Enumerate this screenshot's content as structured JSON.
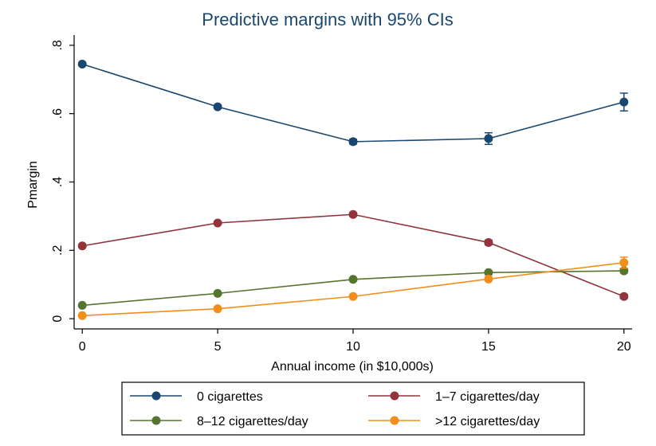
{
  "chart_data": {
    "type": "line",
    "title": "Predictive margins with 95% CIs",
    "xlabel": "Annual income (in $10,000s)",
    "ylabel": "Pmargin",
    "x": [
      0,
      5,
      10,
      15,
      20
    ],
    "x_tick_labels": [
      "0",
      "5",
      "10",
      "15",
      "20"
    ],
    "y_ticks": [
      0,
      0.2,
      0.4,
      0.6,
      0.8
    ],
    "y_tick_labels": [
      "0",
      ".2",
      ".4",
      ".6",
      ".8"
    ],
    "xlim": [
      -0.3,
      20.3
    ],
    "ylim": [
      -0.03,
      0.83
    ],
    "grid": false,
    "legend_position": "bottom",
    "series": [
      {
        "name": "0 cigarettes",
        "color": "#1a476f",
        "values": [
          0.745,
          0.62,
          0.518,
          0.527,
          0.634
        ],
        "ci_half": [
          0.004,
          0.005,
          0.007,
          0.017,
          0.026
        ]
      },
      {
        "name": "1–7 cigarettes/day",
        "color": "#90353b",
        "values": [
          0.213,
          0.28,
          0.305,
          0.223,
          0.065
        ],
        "ci_half": [
          0.003,
          0.004,
          0.005,
          0.007,
          0.006
        ]
      },
      {
        "name": "8–12 cigarettes/day",
        "color": "#55752f",
        "values": [
          0.039,
          0.074,
          0.115,
          0.135,
          0.14
        ],
        "ci_half": [
          0.002,
          0.003,
          0.004,
          0.005,
          0.006
        ]
      },
      {
        "name": ">12 cigarettes/day",
        "color": "#f28e1c",
        "values": [
          0.009,
          0.029,
          0.065,
          0.116,
          0.164
        ],
        "ci_half": [
          0.002,
          0.002,
          0.003,
          0.005,
          0.016
        ]
      }
    ]
  }
}
